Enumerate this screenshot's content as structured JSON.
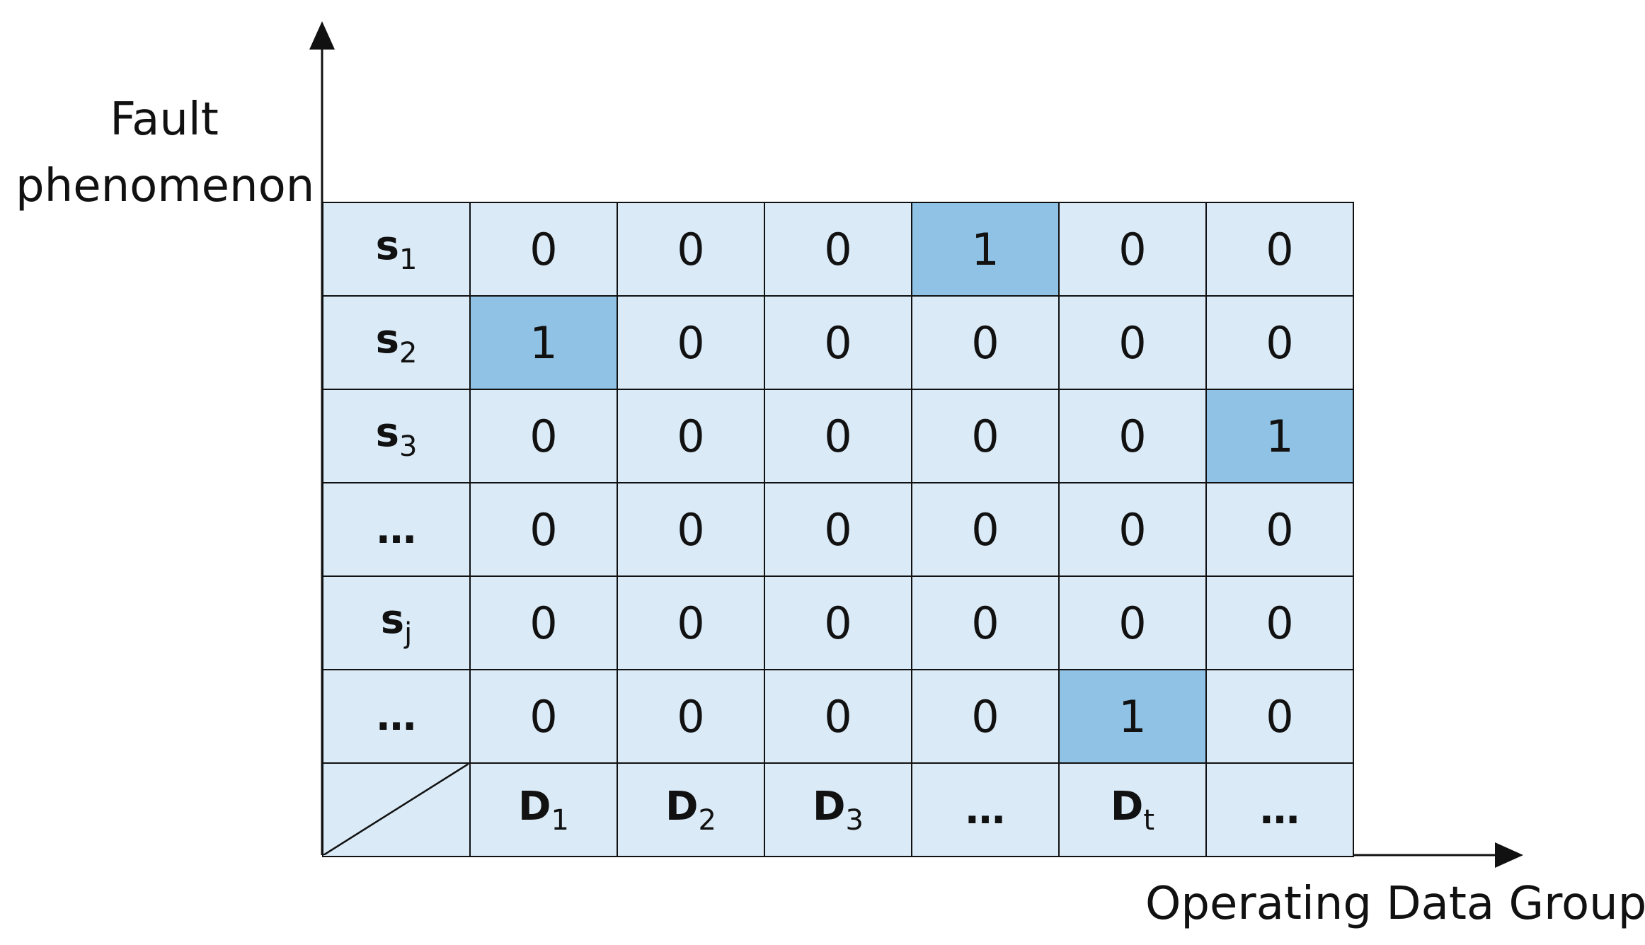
{
  "y_axis_label": "Fault phenomenon",
  "x_axis_label": "Operating Data Group",
  "row_labels": [
    {
      "base": "s",
      "sub": "1"
    },
    {
      "base": "s",
      "sub": "2"
    },
    {
      "base": "s",
      "sub": "3"
    },
    {
      "base": "…"
    },
    {
      "base": "s",
      "sub": "j"
    },
    {
      "base": "…"
    }
  ],
  "column_labels": [
    {
      "base": "D",
      "sub": "1"
    },
    {
      "base": "D",
      "sub": "2"
    },
    {
      "base": "D",
      "sub": "3"
    },
    {
      "base": "…"
    },
    {
      "base": "D",
      "sub": "t"
    },
    {
      "base": "…"
    }
  ],
  "cells": [
    [
      0,
      0,
      0,
      1,
      0,
      0
    ],
    [
      1,
      0,
      0,
      0,
      0,
      0
    ],
    [
      0,
      0,
      0,
      0,
      0,
      1
    ],
    [
      0,
      0,
      0,
      0,
      0,
      0
    ],
    [
      0,
      0,
      0,
      0,
      0,
      0
    ],
    [
      0,
      0,
      0,
      0,
      1,
      0
    ]
  ]
}
